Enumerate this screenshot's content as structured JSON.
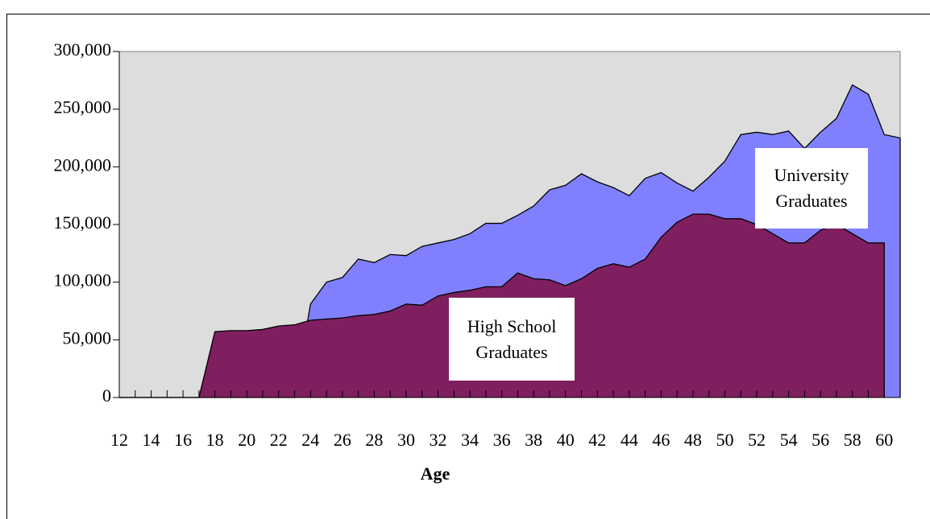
{
  "chart_data": {
    "type": "area",
    "x_label": "Age",
    "categories": [
      "12",
      null,
      "14",
      null,
      "16",
      null,
      "18",
      null,
      "20",
      null,
      "22",
      null,
      "24",
      null,
      "26",
      null,
      "28",
      null,
      "30",
      null,
      "32",
      null,
      "34",
      null,
      "36",
      null,
      "38",
      null,
      "40",
      null,
      "42",
      null,
      "44",
      null,
      "46",
      null,
      "48",
      null,
      "50",
      null,
      "52",
      null,
      "54",
      null,
      "56",
      null,
      "58",
      null,
      "60",
      null
    ],
    "series": [
      {
        "name": "University Graduates",
        "color": "#8080ff",
        "values": [
          0,
          0,
          0,
          0,
          0,
          0,
          0,
          0,
          0,
          0,
          0,
          0,
          81000,
          100000,
          104000,
          120000,
          117000,
          124000,
          123000,
          131000,
          134000,
          137000,
          142000,
          151000,
          151000,
          158000,
          166000,
          180000,
          184000,
          194000,
          187000,
          182000,
          175000,
          190000,
          195000,
          186000,
          179000,
          191000,
          205000,
          228000,
          230000,
          228000,
          231000,
          216000,
          230000,
          242000,
          271000,
          263000,
          228000,
          225000
        ]
      },
      {
        "name": "High School Graduates",
        "color": "#7f1f5f",
        "values": [
          0,
          0,
          0,
          0,
          0,
          0,
          57000,
          58000,
          58000,
          59000,
          62000,
          63000,
          67000,
          68000,
          69000,
          71000,
          72000,
          75000,
          81000,
          80000,
          88000,
          91000,
          93000,
          96000,
          96000,
          108000,
          103000,
          102000,
          97000,
          103000,
          112000,
          116000,
          113000,
          120000,
          139000,
          152000,
          159000,
          159000,
          155000,
          155000,
          150000,
          142000,
          134000,
          134000,
          145000,
          150000,
          142000,
          134000,
          134000,
          null
        ]
      }
    ],
    "ylim": [
      0,
      300000
    ],
    "yticks": [
      0,
      {
        "value": 50000,
        "label": "50,000"
      },
      {
        "value": 100000,
        "label": "100,000"
      },
      {
        "value": 150000,
        "label": "150,000"
      },
      {
        "value": 200000,
        "label": "200,000"
      },
      {
        "value": 250000,
        "label": "250,000"
      },
      {
        "value": 300000,
        "label": "300,000"
      }
    ],
    "grid": false
  }
}
